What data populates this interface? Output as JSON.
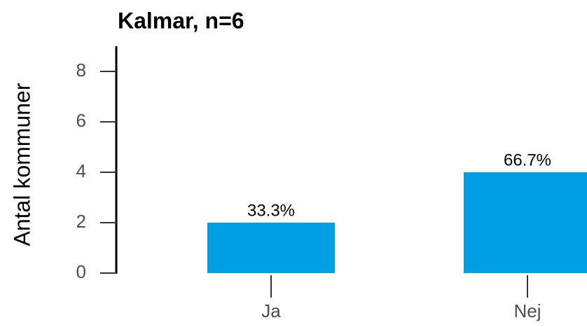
{
  "chart_data": {
    "type": "bar",
    "title": "Kalmar, n=6",
    "ylabel": "Antal kommuner",
    "categories": [
      "Ja",
      "Nej"
    ],
    "values": [
      2,
      4
    ],
    "percent_labels": [
      "33.3%",
      "66.7%"
    ],
    "color": "#009fe3",
    "ylim": [
      0,
      9
    ],
    "yticks": [
      0,
      2,
      4,
      6,
      8
    ],
    "grid": false
  }
}
